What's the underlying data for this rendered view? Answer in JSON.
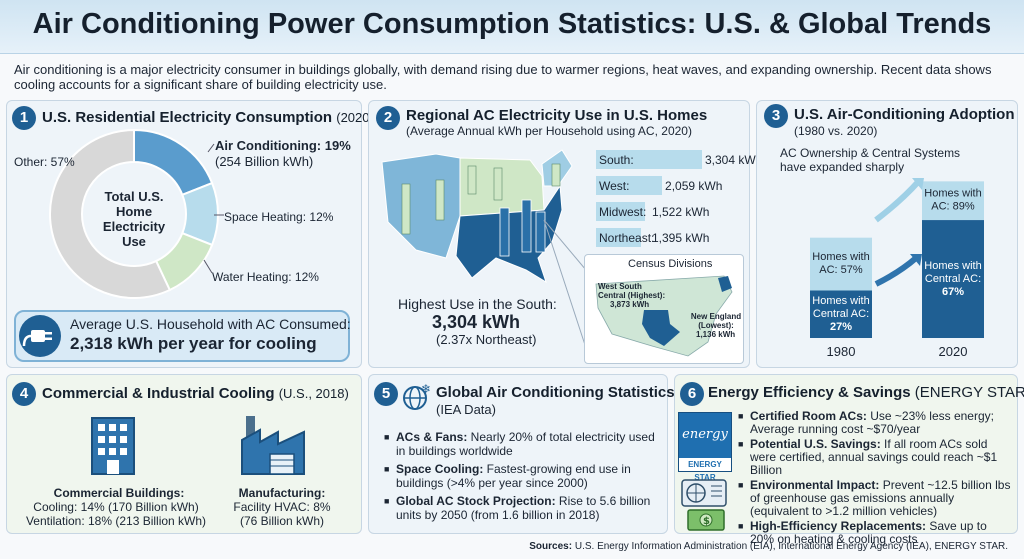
{
  "title": "Air Conditioning Power Consumption Statistics: U.S. & Global Trends",
  "intro": "Air conditioning is a major electricity consumer in buildings globally, with demand rising due to warmer regions, heat waves, and expanding ownership. Recent data shows cooling accounts for a significant share of building electricity use.",
  "colors": {
    "navy": "#1f5f93",
    "mid_blue": "#5a9ccd",
    "light_blue": "#b7dcec",
    "green": "#cfe7c6",
    "grey": "#d8d8d8"
  },
  "panel1": {
    "number": "1",
    "title": "U.S. Residential Electricity Consumption",
    "year": "(2020)",
    "center_label": "Total U.S. Home Electricity Use",
    "ac_label": "Air Conditioning: 19%",
    "ac_sub": "(254 Billion kWh)",
    "heating_label": "Space Heating: 12%",
    "water_label": "Water Heating: 12%",
    "other_label": "Other: 57%",
    "callout_line1": "Average U.S. Household with AC Consumed:",
    "callout_line2": "2,318 kWh per year for cooling",
    "icon": "plug-icon"
  },
  "panel2": {
    "number": "2",
    "title": "Regional AC Electricity Use in U.S. Homes",
    "subtitle": "(Average Annual kWh per Household using AC, 2020)",
    "highlight_line1": "Highest Use in the South:",
    "highlight_value": "3,304 kWh",
    "highlight_note": "(2.37x Northeast)",
    "inset_title": "Census Divisions",
    "inset_high_label": "West South Central (Highest):",
    "inset_high_value": "3,873 kWh",
    "inset_low_label": "New England (Lowest):",
    "inset_low_value": "1,136 kWh"
  },
  "panel3": {
    "number": "3",
    "title": "U.S. Air-Conditioning Adoption",
    "subtitle": "(1980 vs. 2020)",
    "note": "AC Ownership & Central Systems have expanded sharply",
    "ac_label": "Homes with AC:",
    "central_label": "Homes with Central AC:"
  },
  "panel4": {
    "number": "4",
    "title": "Commercial & Industrial Cooling",
    "year": "(U.S., 2018)",
    "commercial_title": "Commercial Buildings:",
    "commercial_line1": "Cooling: 14% (170 Billion kWh)",
    "commercial_line2": "Ventilation: 18% (213 Billion kWh)",
    "manufacturing_title": "Manufacturing:",
    "manufacturing_line1": "Facility HVAC: 8%",
    "manufacturing_line2": "(76 Billion kWh)",
    "icons": [
      "office-building-icon",
      "factory-icon"
    ]
  },
  "panel5": {
    "number": "5",
    "title": "Global Air Conditioning Statistics",
    "subtitle": "(IEA Data)",
    "items": [
      {
        "bold": "ACs & Fans:",
        "text": " Nearly 20% of total electricity used in buildings worldwide"
      },
      {
        "bold": "Space Cooling:",
        "text": " Fastest-growing end use in buildings (>4% per year since 2000)"
      },
      {
        "bold": "Global AC Stock Projection:",
        "text": " Rise to 5.6 billion units by 2050 (from 1.6 billion in 2018)"
      }
    ],
    "icon": "globe-snowflake-icon"
  },
  "panel6": {
    "number": "6",
    "title": "Energy Efficiency & Savings",
    "title_suffix": "(ENERGY STAR)",
    "logo_text": "energy",
    "logo_band": "ENERGY STAR",
    "items": [
      {
        "bold": "Certified Room ACs:",
        "text": " Use ~23% less energy; Average running cost ~$70/year"
      },
      {
        "bold": "Potential U.S. Savings:",
        "text": " If all room ACs sold were certified, annual savings could reach ~$1 Billion"
      },
      {
        "bold": "Environmental Impact:",
        "text": " Prevent ~12.5 billion lbs of greenhouse gas emissions annually (equivalent to >1.2 million vehicles)"
      },
      {
        "bold": "High-Efficiency Replacements:",
        "text": " Save up to 20% on heating & cooling costs"
      }
    ],
    "icons": [
      "air-conditioner-icon",
      "money-icon"
    ]
  },
  "sources_label": "Sources:",
  "sources_text": " U.S. Energy Information Administration (EIA), International Energy Agency (IEA), ENERGY STAR.",
  "chart_data": [
    {
      "type": "pie",
      "categories": [
        "Air Conditioning",
        "Space Heating",
        "Water Heating",
        "Other"
      ],
      "values": [
        19,
        12,
        12,
        57
      ],
      "unit": "%"
    },
    {
      "type": "bar",
      "categories": [
        "South",
        "West",
        "Midwest",
        "Northeast"
      ],
      "values": [
        3304,
        2059,
        1522,
        1395
      ],
      "value_labels": [
        "3,304 kWh",
        "2,059 kWh",
        "1,522 kWh",
        "1,395 kWh"
      ],
      "xlim": [
        0,
        3304
      ]
    },
    {
      "type": "bar",
      "categories": [
        "1980",
        "2020"
      ],
      "series": [
        {
          "name": "Homes with AC",
          "values": [
            57,
            89
          ],
          "labels": [
            "57%",
            "89%"
          ]
        },
        {
          "name": "Homes with Central AC",
          "values": [
            27,
            67
          ],
          "labels": [
            "27%",
            "67%"
          ]
        }
      ],
      "ylim": [
        0,
        100
      ]
    }
  ]
}
